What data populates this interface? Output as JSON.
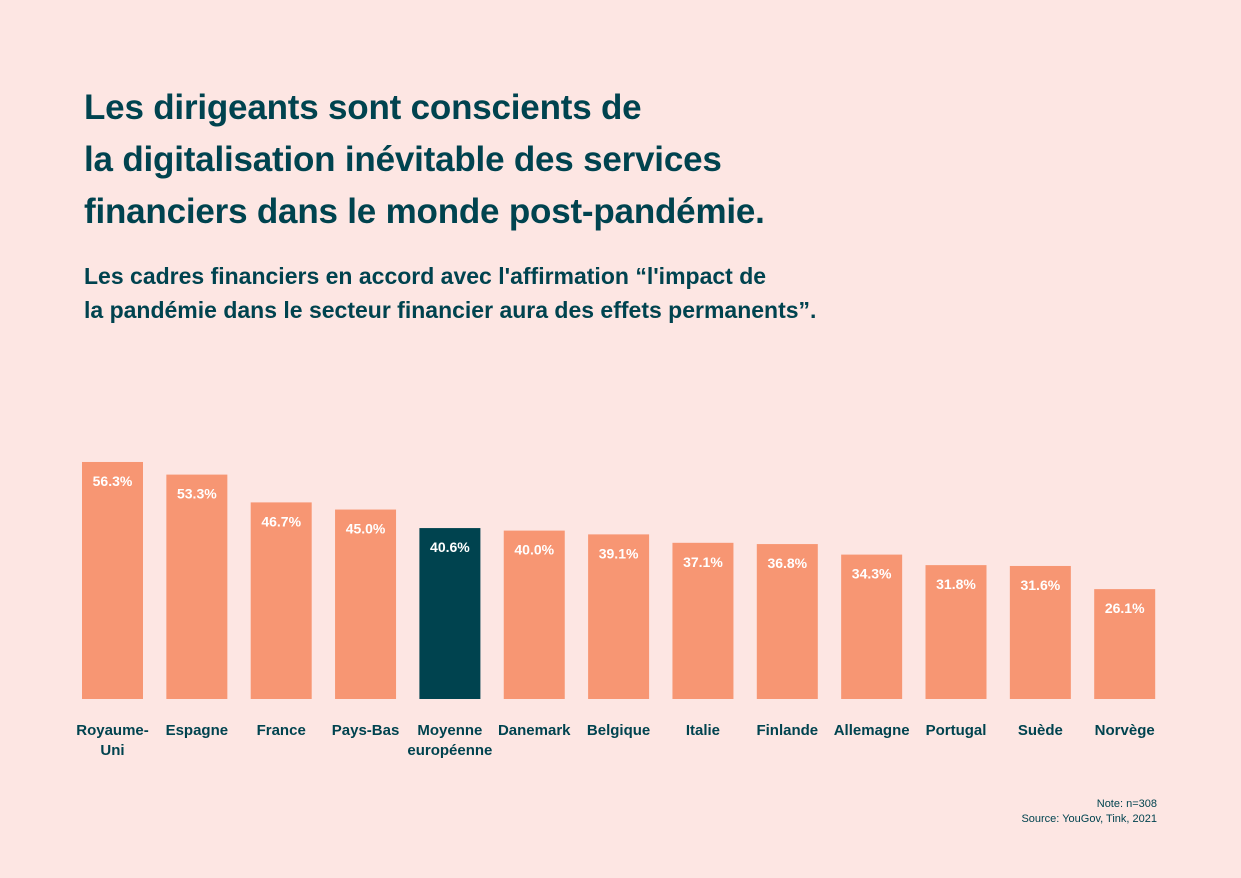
{
  "colors": {
    "background": "#fde6e3",
    "bar": "#f79673",
    "highlight": "#00434f",
    "text": "#00434f",
    "label": "#ffffff"
  },
  "chart_data": {
    "type": "bar",
    "title": "Les dirigeants sont conscients de\nla digitalisation inévitable des services\nfinanciers dans le monde post-pandémie.",
    "subtitle": "Les cadres financiers en accord avec l'affirmation “l'impact de\nla pandémie dans le secteur financier aura des effets permanents”.",
    "categories": [
      "Royaume-\nUni",
      "Espagne",
      "France",
      "Pays-Bas",
      "Moyenne\neuropéenne",
      "Danemark",
      "Belgique",
      "Italie",
      "Finlande",
      "Allemagne",
      "Portugal",
      "Suède",
      "Norvège"
    ],
    "values": [
      56.3,
      53.3,
      46.7,
      45.0,
      40.6,
      40.0,
      39.1,
      37.1,
      36.8,
      34.3,
      31.8,
      31.6,
      26.1
    ],
    "data_labels": [
      "56.3%",
      "53.3%",
      "46.7%",
      "45.0%",
      "40.6%",
      "40.0%",
      "39.1%",
      "37.1%",
      "36.8%",
      "34.3%",
      "31.8%",
      "31.6%",
      "26.1%"
    ],
    "highlight_category": "Moyenne\neuropéenne",
    "xlabel": "",
    "ylabel": "",
    "grid": false,
    "legend": "none"
  },
  "footer": {
    "note": "Note: n=308",
    "source": "Source: YouGov, Tink, 2021"
  }
}
